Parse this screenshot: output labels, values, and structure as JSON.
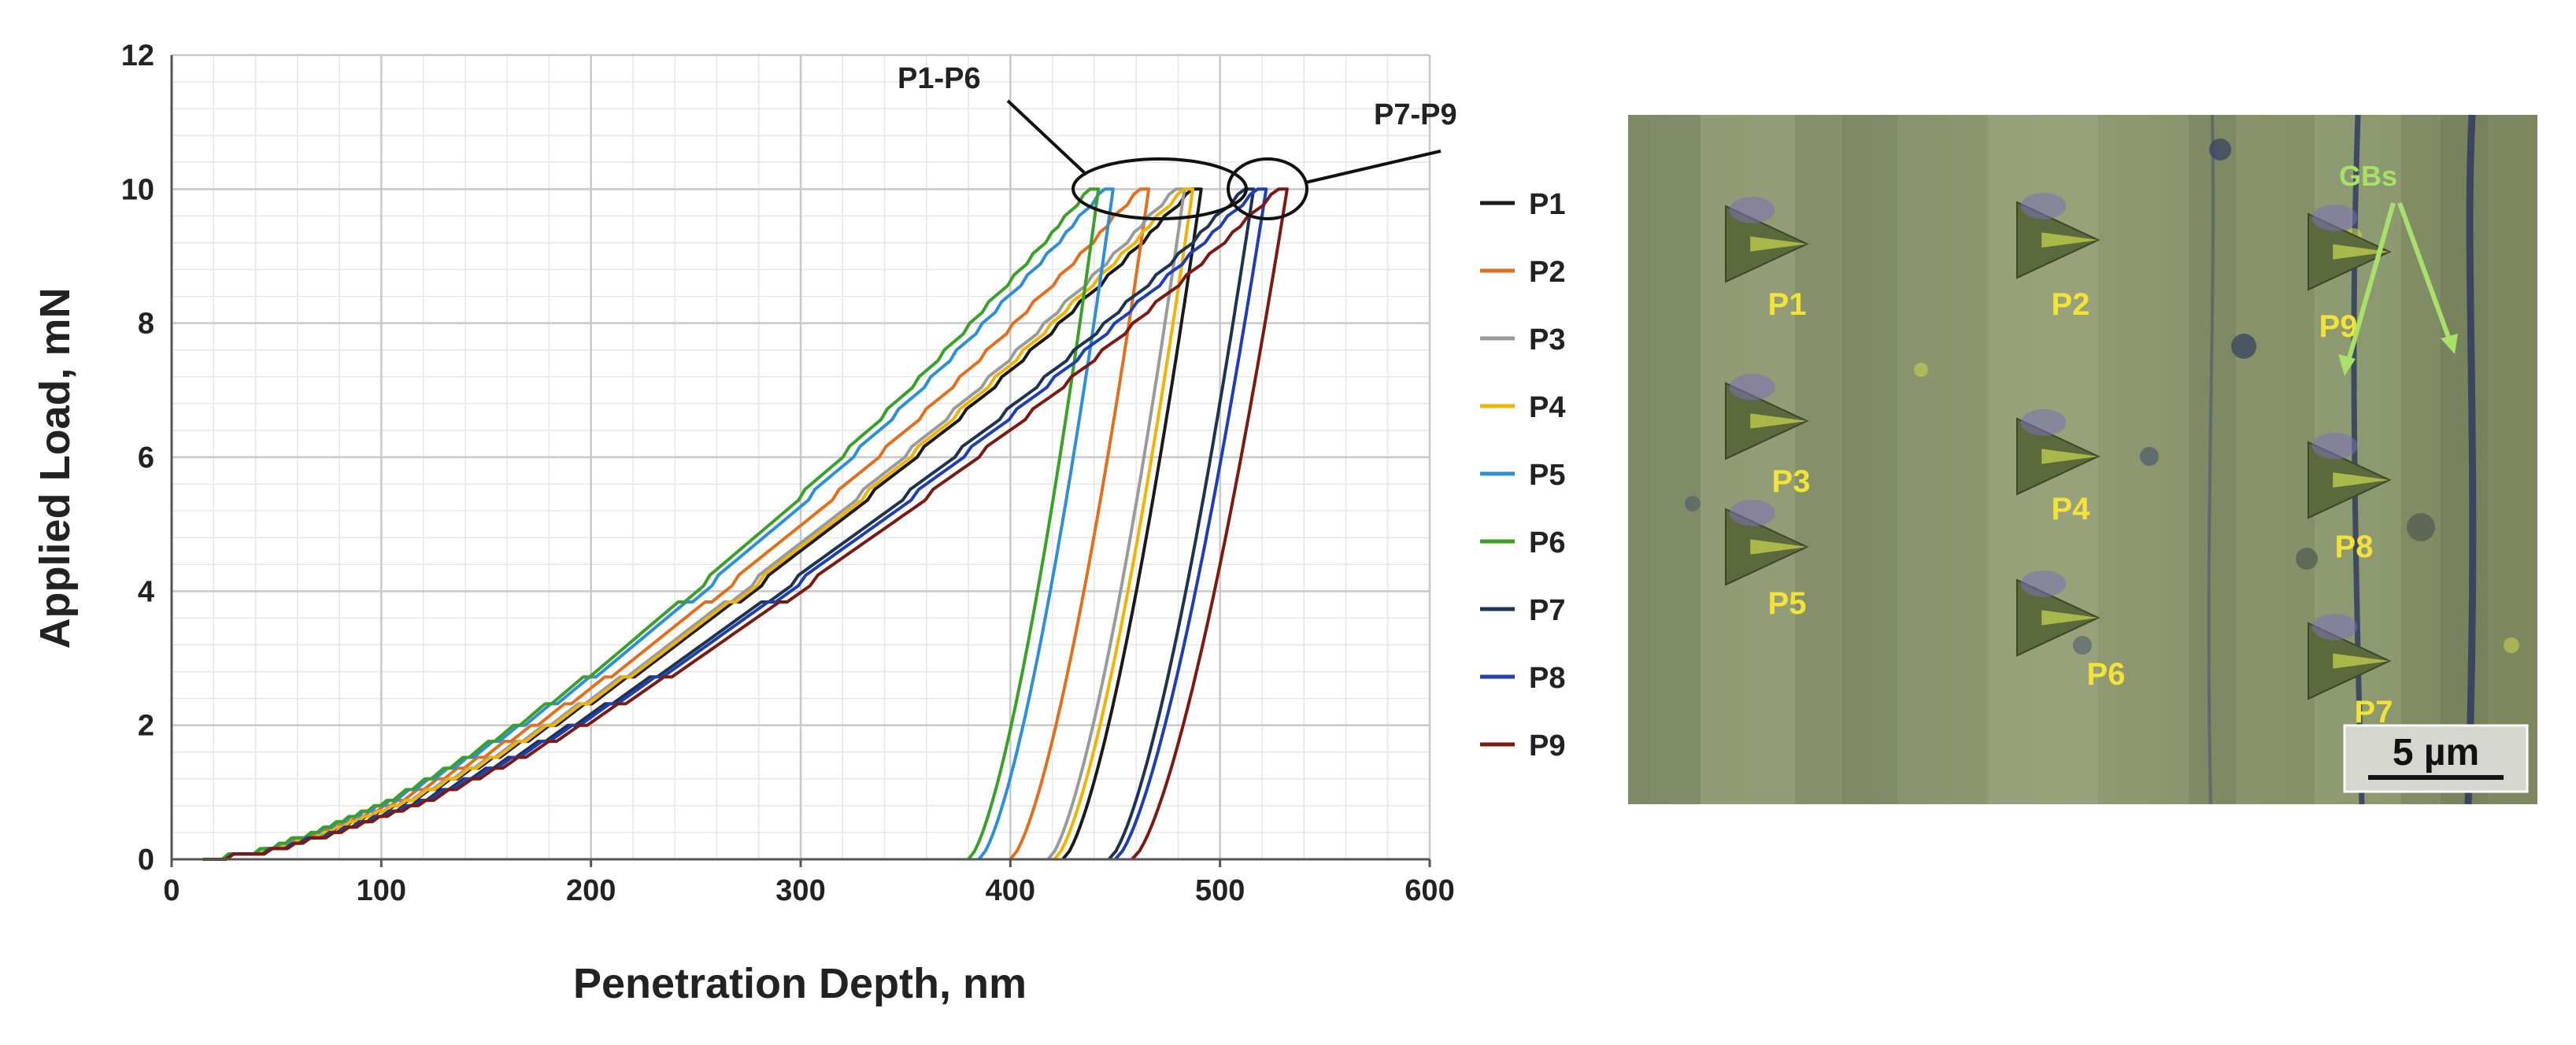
{
  "chart_data": {
    "type": "line",
    "xlabel": "Penetration Depth, nm",
    "ylabel": "Applied Load, mN",
    "xlim": [
      0,
      600
    ],
    "ylim": [
      0,
      12
    ],
    "xticks": [
      "0",
      "100",
      "200",
      "300",
      "400",
      "500",
      "600"
    ],
    "yticks": [
      "0",
      "2",
      "4",
      "6",
      "8",
      "10",
      "12"
    ],
    "grid": true,
    "legend_position": "right",
    "annotations": [
      "P1-P6",
      "P7-P9"
    ],
    "series": [
      {
        "name": "P1",
        "color": "#1a1a1a",
        "h_max": 487,
        "h_final": 425,
        "loading_exponent": 1.55
      },
      {
        "name": "P2",
        "color": "#e07020",
        "h_max": 462,
        "h_final": 400,
        "loading_exponent": 1.55
      },
      {
        "name": "P3",
        "color": "#9a9a9a",
        "h_max": 479,
        "h_final": 418,
        "loading_exponent": 1.55
      },
      {
        "name": "P4",
        "color": "#f0b400",
        "h_max": 483,
        "h_final": 421,
        "loading_exponent": 1.55
      },
      {
        "name": "P5",
        "color": "#2f8fd6",
        "h_max": 445,
        "h_final": 385,
        "loading_exponent": 1.55
      },
      {
        "name": "P6",
        "color": "#3aa02a",
        "h_max": 438,
        "h_final": 380,
        "loading_exponent": 1.55
      },
      {
        "name": "P7",
        "color": "#1e3350",
        "h_max": 512,
        "h_final": 447,
        "loading_exponent": 1.55
      },
      {
        "name": "P8",
        "color": "#1f3fb0",
        "h_max": 518,
        "h_final": 450,
        "loading_exponent": 1.55
      },
      {
        "name": "P9",
        "color": "#7a1a10",
        "h_max": 528,
        "h_final": 458,
        "loading_exponent": 1.55
      }
    ],
    "peak_load": 10
  },
  "micrograph": {
    "indent_labels": [
      "P1",
      "P2",
      "P3",
      "P4",
      "P5",
      "P6",
      "P7",
      "P8",
      "P9"
    ],
    "gb_label": "GBs",
    "scale_bar": "5 µm"
  }
}
